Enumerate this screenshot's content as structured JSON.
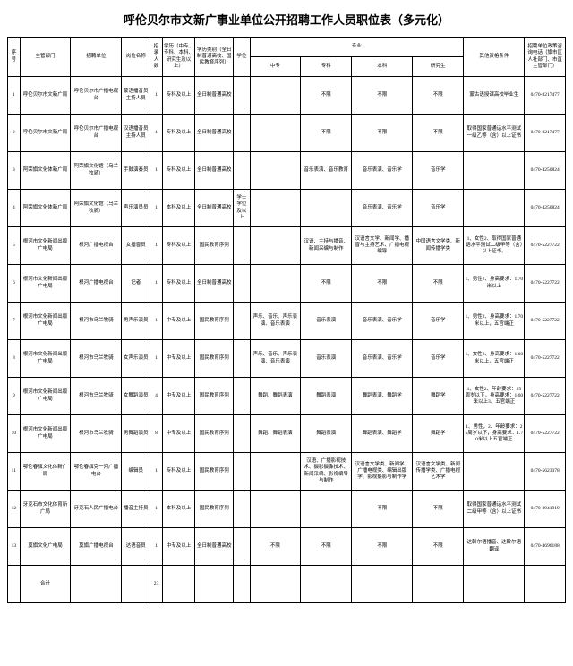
{
  "title": "呼伦贝尔市文新广事业单位公开招聘工作人员职位表（多元化）",
  "head": {
    "seq": "序号",
    "dept": "主管部门",
    "unit": "招聘单位",
    "post": "岗位名称",
    "num": "招录人数",
    "edu": "学历（中专、专科、本科、研究生及以上）",
    "type": "学历类别（全日制普通高校、国民教育序列）",
    "degree": "学位",
    "major": "专业",
    "zz": "中专",
    "zk": "专科",
    "bk": "本科",
    "yj": "研究生",
    "other": "其他资格条件",
    "tel": "招聘单位政策咨询电话（旗市区人社部门、市直主管部门）"
  },
  "rows": [
    {
      "seq": "1",
      "dept": "呼伦贝尔市文新广局",
      "unit": "呼伦贝尔市广播电视台",
      "post": "蒙语播音员主持人员",
      "num": "1",
      "edu": "专科及以上",
      "type": "全日制普通高校",
      "deg": "",
      "zz": "",
      "zk": "不限",
      "bk": "不限",
      "yj": "不限",
      "other": "蒙古语授课高校毕业生",
      "tel": "0470-8217477"
    },
    {
      "seq": "2",
      "dept": "呼伦贝尔市文新广局",
      "unit": "呼伦贝尔市广播电视台",
      "post": "汉语播音员主持人员",
      "num": "1",
      "edu": "专科及以上",
      "type": "全日制普通高校",
      "deg": "",
      "zz": "",
      "zk": "不限",
      "bk": "不限",
      "yj": "不限",
      "other": "取得国家普通话水平测试一级乙等（含）以上证书",
      "tel": "0470-8217477"
    },
    {
      "seq": "3",
      "dept": "阿荣旗文化体新广局",
      "unit": "阿荣旗文化馆（乌兰牧骑）",
      "post": "手鼓演奏员",
      "num": "1",
      "edu": "专科及以上",
      "type": "全日制普通高校",
      "deg": "",
      "zz": "",
      "zk": "音乐表演、音乐教育",
      "bk": "音乐表演、音乐学",
      "yj": "音乐学",
      "other": "",
      "tel": "0470-4250824"
    },
    {
      "seq": "4",
      "dept": "阿荣旗文化体新广局",
      "unit": "阿荣旗文化馆（乌兰牧骑）",
      "post": "声乐演员员",
      "num": "1",
      "edu": "本科及以上",
      "type": "全日制普通高校",
      "deg": "学士学位及以上",
      "zz": "",
      "zk": "",
      "bk": "音乐表演、音乐学",
      "yj": "音乐学",
      "other": "",
      "tel": "0470-4250824"
    },
    {
      "seq": "5",
      "dept": "根河市文化新闻出版广电局",
      "unit": "根河广播电视台",
      "post": "女播音员",
      "num": "1",
      "edu": "专科及以上",
      "type": "国民教育序列",
      "deg": "",
      "zz": "",
      "zk": "汉语、主持与播音、新闻采编与制作",
      "bk": "汉语言文学、新闻学、播音与主持艺术、广播电视编导",
      "yj": "中国语言文学类、新闻传播学类",
      "other": "1、女性2、取得国家普通话水平测试二级甲等（含）以上证书。",
      "tel": "0470-5227722"
    },
    {
      "seq": "6",
      "dept": "根河市文化新闻出版广电局",
      "unit": "根河广播电视台",
      "post": "记者",
      "num": "1",
      "edu": "专科及以上",
      "type": "全日制普通高校",
      "deg": "",
      "zz": "",
      "zk": "不限",
      "bk": "不限",
      "yj": "不限",
      "other": "1、男性2、身高要求：1.70米以上",
      "tel": "0470-5227722"
    },
    {
      "seq": "7",
      "dept": "根河市文化新闻出版广电局",
      "unit": "根河市乌兰牧骑",
      "post": "男声乐演员",
      "num": "1",
      "edu": "中专及以上",
      "type": "国民教育序列",
      "deg": "",
      "zz": "声乐、音乐、声乐表演、音乐表演",
      "zk": "音乐表演",
      "bk": "音乐表演、音乐学",
      "yj": "音乐学",
      "other": "1、男性2、身高要求：1.70米以上，五官端正",
      "tel": "0470-5227722"
    },
    {
      "seq": "8",
      "dept": "根河市文化新闻出版广电局",
      "unit": "根河市乌兰牧骑",
      "post": "女声乐演员",
      "num": "1",
      "edu": "中专及以上",
      "type": "国民教育序列",
      "deg": "",
      "zz": "声乐、音乐、声乐表演、音乐表演",
      "zk": "音乐表演",
      "bk": "音乐表演、音乐学",
      "yj": "音乐学",
      "other": "1、女性2、身高要求：1.60米以上，五官端正",
      "tel": "0470-5227722"
    },
    {
      "seq": "9",
      "dept": "根河市文化新闻出版广电局",
      "unit": "根河市乌兰牧骑",
      "post": "女舞蹈演员",
      "num": "4",
      "edu": "中专及以上",
      "type": "国民教育序列",
      "deg": "",
      "zz": "舞蹈、舞蹈表演",
      "zk": "舞蹈表演",
      "bk": "舞蹈表演、舞蹈学",
      "yj": "舞蹈学",
      "other": "1、女性2、年龄要求：25周岁以下，身高要求：1.60米以上3、五官端正",
      "tel": "0470-5227722"
    },
    {
      "seq": "10",
      "dept": "根河市文化新闻出版广电局",
      "unit": "根河市乌兰牧骑",
      "post": "男舞蹈演员",
      "num": "8",
      "edu": "中专及以上",
      "type": "国民教育序列",
      "deg": "",
      "zz": "舞蹈、舞蹈表演",
      "zk": "舞蹈表演",
      "bk": "舞蹈表演、舞蹈学",
      "yj": "舞蹈学",
      "other": "1、男性，2、年龄要求：25周岁以下，身高要求：1.70米以上五官端正",
      "tel": "0470-5227722"
    },
    {
      "seq": "11",
      "dept": "鄂伦春旗文化体新广局",
      "unit": "鄂伦春旗克一河广播电台",
      "post": "编辑员",
      "num": "1",
      "edu": "专科及以上",
      "type": "国民教育序列",
      "deg": "",
      "zz": "",
      "zk": "汉语、广播影视技术、摄影摄像技术、新闻采编、影视编导与制作",
      "bk": "汉语言文学类、新闻学、广播电视类、编辑出版学、影视摄影与制作学",
      "yj": "汉语言文学类、新闻传播学类、广播电视艺术学",
      "other": "",
      "tel": "0470-5623378"
    },
    {
      "seq": "12",
      "dept": "牙克石市文化体育新广局",
      "unit": "牙克石人民广播电台",
      "post": "播音主持员",
      "num": "1",
      "edu": "本科及以上",
      "type": "国民教育序列",
      "deg": "",
      "zz": "",
      "zk": "",
      "bk": "不限",
      "yj": "不限",
      "other": "取得国家普通话水平测试二级甲等（含）以上证书",
      "tel": "0470-3941919"
    },
    {
      "seq": "13",
      "dept": "莫旗文化广电局",
      "unit": "莫旗广播电视台",
      "post": "达语音员",
      "num": "1",
      "edu": "中专及以上",
      "type": "全日制普通高校",
      "deg": "",
      "zz": "不限",
      "zk": "不限",
      "bk": "不限",
      "yj": "不限",
      "other": "达斡尔语播音、达斡尔语翻译",
      "tel": "0470-4696188"
    }
  ],
  "sum": {
    "label": "合计",
    "total": "23"
  }
}
